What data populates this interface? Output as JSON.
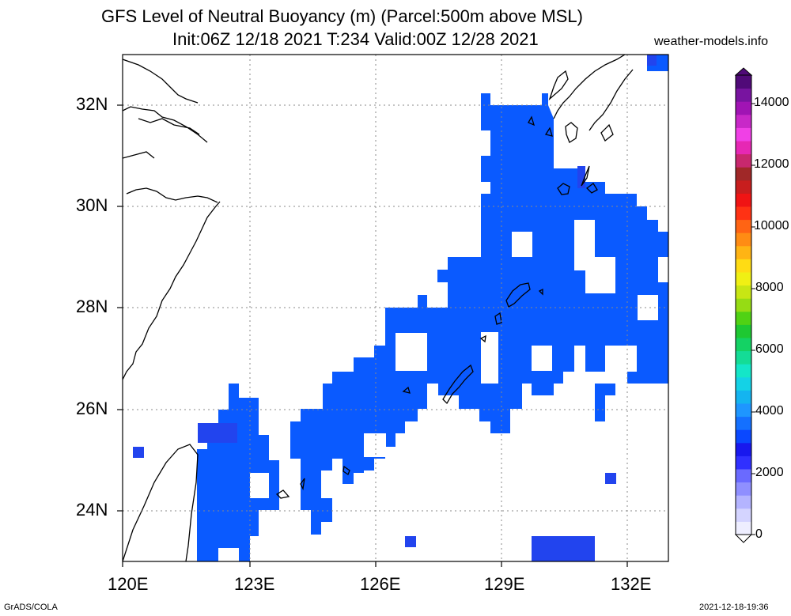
{
  "header": {
    "title_line1": "GFS Level of Neutral Buoyancy (m) (Parcel:500m above MSL)",
    "title_line2": "Init:06Z 12/18 2021 T:234 Valid:00Z 12/28 2021",
    "site": "weather-models.info"
  },
  "footer": {
    "left": "GrADS/COLA",
    "right": "2021-12-18-19:36"
  },
  "map": {
    "lon_ticks": [
      "120E",
      "123E",
      "126E",
      "129E",
      "132E"
    ],
    "lat_ticks": [
      "32N",
      "30N",
      "28N",
      "26N",
      "24N"
    ],
    "lon_range": [
      120,
      133
    ],
    "lat_range": [
      23,
      33
    ]
  },
  "colorbar": {
    "labels": [
      "14000",
      "12000",
      "10000",
      "8000",
      "6000",
      "4000",
      "2000",
      "0"
    ],
    "colors": [
      "#eeeeff",
      "#d4d4ff",
      "#b4b4ff",
      "#8f8fff",
      "#6a6aff",
      "#3030ff",
      "#1818ee",
      "#0a48ff",
      "#1470ff",
      "#1e96ff",
      "#14b4f0",
      "#14d2e6",
      "#14e6c8",
      "#14dc96",
      "#14d264",
      "#1ec832",
      "#50d214",
      "#96dc14",
      "#c8e614",
      "#f0f014",
      "#ffdc14",
      "#ffb414",
      "#ff8c14",
      "#ff6414",
      "#ff3214",
      "#f01414",
      "#c81e1e",
      "#a02828",
      "#c8286e",
      "#e628b4",
      "#f040e6",
      "#c828c8",
      "#a014b4",
      "#7814a0",
      "#500a78"
    ],
    "field_color": "#0a5aff",
    "field_dark": "#2244ee"
  }
}
